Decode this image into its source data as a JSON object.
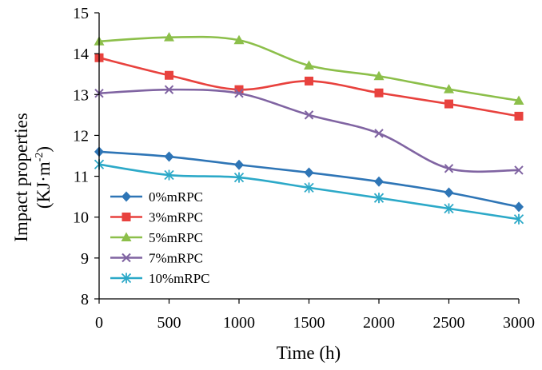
{
  "chart_data": {
    "type": "line",
    "title": "",
    "xlabel": "Time (h)",
    "ylabel_line1": "Impact properties",
    "ylabel_line2_base": "(KJ·m",
    "ylabel_line2_sup": "-2",
    "ylabel_line2_close": ")",
    "x": [
      0,
      500,
      1000,
      1500,
      2000,
      2500,
      3000
    ],
    "xlim": [
      0,
      3000
    ],
    "ylim": [
      8,
      15
    ],
    "xticks": [
      "0",
      "500",
      "1000",
      "1500",
      "2000",
      "2500",
      "3000"
    ],
    "yticks": [
      "8",
      "9",
      "10",
      "11",
      "12",
      "13",
      "14",
      "15"
    ],
    "grid": false,
    "legend_position": "left",
    "smoothed": true,
    "series": [
      {
        "name": "0%mRPC",
        "color": "#2E75B6",
        "marker": "diamond",
        "values": [
          11.6,
          11.48,
          11.28,
          11.09,
          10.87,
          10.6,
          10.25
        ]
      },
      {
        "name": "3%mRPC",
        "color": "#E8423E",
        "marker": "square",
        "values": [
          13.9,
          13.47,
          13.12,
          13.33,
          13.04,
          12.77,
          12.47
        ]
      },
      {
        "name": "5%mRPC",
        "color": "#8CBF4A",
        "marker": "triangle",
        "values": [
          14.3,
          14.4,
          14.33,
          13.71,
          13.45,
          13.13,
          12.85
        ]
      },
      {
        "name": "7%mRPC",
        "color": "#8064A2",
        "marker": "x",
        "values": [
          13.03,
          13.12,
          13.03,
          12.5,
          12.05,
          11.19,
          11.15
        ]
      },
      {
        "name": "10%mRPC",
        "color": "#2CA9C8",
        "marker": "star",
        "values": [
          11.29,
          11.03,
          10.97,
          10.72,
          10.47,
          10.21,
          9.95
        ]
      }
    ]
  }
}
